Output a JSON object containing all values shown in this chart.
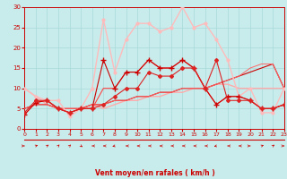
{
  "xlabel": "Vent moyen/en rafales ( km/h )",
  "xlim": [
    0,
    23
  ],
  "ylim": [
    0,
    30
  ],
  "yticks": [
    0,
    5,
    10,
    15,
    20,
    25,
    30
  ],
  "xticks": [
    0,
    1,
    2,
    3,
    4,
    5,
    6,
    7,
    8,
    9,
    10,
    11,
    12,
    13,
    14,
    15,
    16,
    17,
    18,
    19,
    20,
    21,
    22,
    23
  ],
  "background_color": "#c8ecec",
  "grid_color": "#a8d8d8",
  "series": [
    {
      "x": [
        0,
        1,
        2,
        3,
        4,
        5,
        6,
        7,
        8,
        9,
        10,
        11,
        12,
        13,
        14,
        15,
        16,
        17,
        18,
        19,
        20,
        21,
        22,
        23
      ],
      "y": [
        3.5,
        6.5,
        7,
        5,
        4,
        5,
        5,
        17,
        10,
        14,
        14,
        17,
        15,
        15,
        17,
        15,
        10,
        6,
        8,
        8,
        7,
        5,
        5,
        6
      ],
      "color": "#cc0000",
      "marker": "+",
      "lw": 0.8,
      "markersize": 4,
      "zorder": 5
    },
    {
      "x": [
        0,
        1,
        2,
        3,
        4,
        5,
        6,
        7,
        8,
        9,
        10,
        11,
        12,
        13,
        14,
        15,
        16,
        17,
        18,
        19,
        20,
        21,
        22,
        23
      ],
      "y": [
        3.5,
        6.5,
        7,
        5,
        4,
        5,
        5,
        10,
        10,
        14,
        14,
        17,
        15,
        15,
        17,
        15,
        10,
        6,
        8,
        8,
        7,
        5,
        5,
        6
      ],
      "color": "#ff4444",
      "marker": null,
      "lw": 0.8,
      "markersize": 0,
      "zorder": 4
    },
    {
      "x": [
        0,
        1,
        2,
        3,
        4,
        5,
        6,
        7,
        8,
        9,
        10,
        11,
        12,
        13,
        14,
        15,
        16,
        17,
        18,
        19,
        20,
        21,
        22,
        23
      ],
      "y": [
        10,
        8,
        6,
        5,
        5,
        5,
        6,
        5,
        6,
        7,
        7,
        8,
        8,
        9,
        9,
        10,
        10,
        11,
        11,
        10,
        10,
        10,
        10,
        10
      ],
      "color": "#ffaaaa",
      "marker": null,
      "lw": 1.0,
      "markersize": 0,
      "zorder": 3
    },
    {
      "x": [
        0,
        1,
        2,
        3,
        4,
        5,
        6,
        7,
        8,
        9,
        10,
        11,
        12,
        13,
        14,
        15,
        16,
        17,
        18,
        19,
        20,
        21,
        22,
        23
      ],
      "y": [
        5,
        6,
        6,
        5,
        5,
        5,
        6,
        6,
        7,
        7,
        8,
        8,
        9,
        9,
        10,
        10,
        10,
        11,
        12,
        13,
        14,
        15,
        16,
        10
      ],
      "color": "#cc0000",
      "marker": null,
      "lw": 0.8,
      "markersize": 0,
      "zorder": 3
    },
    {
      "x": [
        0,
        1,
        2,
        3,
        4,
        5,
        6,
        7,
        8,
        9,
        10,
        11,
        12,
        13,
        14,
        15,
        16,
        17,
        18,
        19,
        20,
        21,
        22,
        23
      ],
      "y": [
        5,
        6,
        6,
        5,
        5,
        5,
        6,
        6,
        7,
        7,
        8,
        8,
        9,
        9,
        10,
        10,
        10,
        11,
        12,
        13,
        15,
        16,
        16,
        10
      ],
      "color": "#ff6666",
      "marker": null,
      "lw": 0.7,
      "markersize": 0,
      "zorder": 3
    },
    {
      "x": [
        0,
        1,
        2,
        3,
        4,
        5,
        6,
        7,
        8,
        9,
        10,
        11,
        12,
        13,
        14,
        15,
        16,
        17,
        18,
        19,
        20,
        21,
        22,
        23
      ],
      "y": [
        10,
        8,
        7,
        7,
        3,
        5,
        10,
        27,
        14,
        22,
        26,
        26,
        24,
        25,
        30,
        25,
        26,
        22,
        17,
        8,
        10,
        4,
        4,
        10
      ],
      "color": "#ffbbbb",
      "marker": "o",
      "lw": 1.0,
      "markersize": 2,
      "zorder": 4
    },
    {
      "x": [
        0,
        1,
        2,
        3,
        4,
        5,
        6,
        7,
        8,
        9,
        10,
        11,
        12,
        13,
        14,
        15,
        16,
        17,
        18,
        19,
        20,
        21,
        22,
        23
      ],
      "y": [
        4,
        7,
        7,
        5,
        4,
        5,
        5,
        6,
        8,
        10,
        10,
        14,
        13,
        13,
        15,
        15,
        10,
        17,
        7,
        7,
        7,
        5,
        5,
        6
      ],
      "color": "#dd2222",
      "marker": "D",
      "lw": 0.8,
      "markersize": 2,
      "zorder": 5
    }
  ],
  "arrows": {
    "angles_deg": [
      90,
      60,
      45,
      30,
      30,
      135,
      270,
      270,
      250,
      270,
      270,
      270,
      270,
      270,
      270,
      270,
      270,
      250,
      270,
      270,
      90,
      60,
      45,
      90
    ],
    "color": "#cc0000"
  }
}
